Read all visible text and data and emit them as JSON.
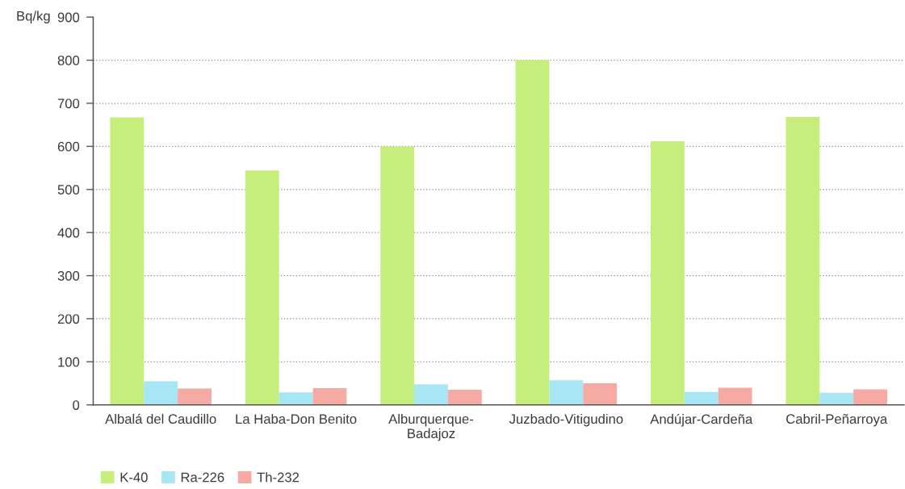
{
  "chart_data": {
    "type": "bar",
    "ylabel": "Bq/kg",
    "categories": [
      "Albalá del Caudillo",
      "La Haba-Don Benito",
      "Alburquerque-\nBadajoz",
      "Juzbado-Vitigudino",
      "Andújar-Cardeña",
      "Cabril-Peñarroya"
    ],
    "series": [
      {
        "name": "K-40",
        "color": "#c6ee7c",
        "values": [
          667,
          544,
          600,
          800,
          612,
          668
        ]
      },
      {
        "name": "Ra-226",
        "color": "#a8e6f6",
        "values": [
          55,
          29,
          48,
          57,
          30,
          28
        ]
      },
      {
        "name": "Th-232",
        "color": "#f5aaa3",
        "values": [
          38,
          39,
          35,
          50,
          40,
          36
        ]
      }
    ],
    "ylim": [
      0,
      900
    ],
    "yticks": [
      0,
      100,
      200,
      300,
      400,
      500,
      600,
      700,
      800,
      900
    ],
    "grid": "y",
    "legend": "bottom left"
  }
}
